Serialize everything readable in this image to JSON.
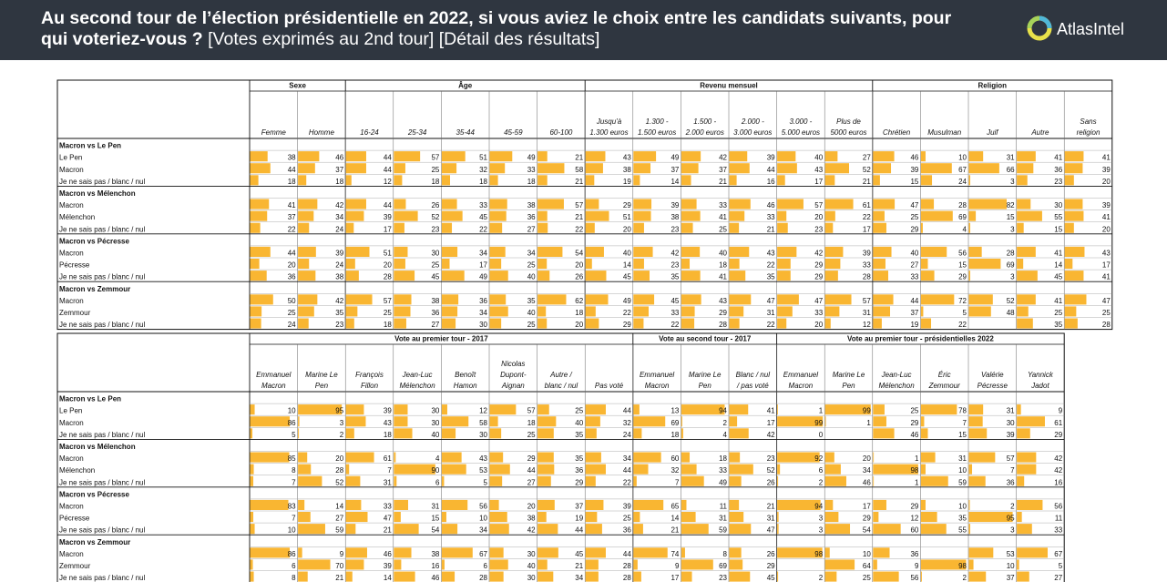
{
  "header": {
    "title_bold": "Au second tour de l’élection présidentielle en 2022, si vous aviez le choix entre les candidats suivants, pour qui voteriez-vous ?",
    "title_normal": " [Votes exprimés au 2nd tour] [Détail des résultats]",
    "logo_text": "AtlasIntel"
  },
  "colors": {
    "bar": "#f9b632",
    "header_bg": "#2f3640"
  },
  "table1": {
    "groups": [
      {
        "label": "Sexe",
        "span": 2
      },
      {
        "label": "Âge",
        "span": 5
      },
      {
        "label": "Revenu mensuel",
        "span": 6
      },
      {
        "label": "Religion",
        "span": 5
      }
    ],
    "columns": [
      [
        "Femme"
      ],
      [
        "Homme"
      ],
      [
        "16-24"
      ],
      [
        "25-34"
      ],
      [
        "35-44"
      ],
      [
        "45-59"
      ],
      [
        "60-100"
      ],
      [
        "Jusqu'à",
        "1.300 euros"
      ],
      [
        "1.300 -",
        "1.500 euros"
      ],
      [
        "1.500 -",
        "2.000 euros"
      ],
      [
        "2.000 -",
        "3.000 euros"
      ],
      [
        "3.000 -",
        "5.000 euros"
      ],
      [
        "Plus de",
        "5000 euros"
      ],
      [
        "Chrétien"
      ],
      [
        "Musulman"
      ],
      [
        "Juif"
      ],
      [
        "Autre"
      ],
      [
        "Sans",
        "religion"
      ]
    ],
    "sections": [
      {
        "title": "Macron vs Le Pen",
        "rows": [
          {
            "label": "Le Pen",
            "values": [
              38,
              46,
              44,
              57,
              51,
              49,
              21,
              43,
              49,
              42,
              39,
              40,
              27,
              46,
              10,
              31,
              41,
              41
            ]
          },
          {
            "label": "Macron",
            "values": [
              44,
              37,
              44,
              25,
              32,
              33,
              58,
              38,
              37,
              37,
              44,
              43,
              52,
              39,
              67,
              66,
              36,
              39
            ]
          },
          {
            "label": "Je ne sais pas / blanc / nul",
            "values": [
              18,
              18,
              12,
              18,
              18,
              18,
              21,
              19,
              14,
              21,
              16,
              17,
              21,
              15,
              24,
              3,
              23,
              20
            ]
          }
        ]
      },
      {
        "title": "Macron vs Mélenchon",
        "rows": [
          {
            "label": "Macron",
            "values": [
              41,
              42,
              44,
              26,
              33,
              38,
              57,
              29,
              39,
              33,
              46,
              57,
              61,
              47,
              28,
              82,
              30,
              39
            ]
          },
          {
            "label": "Mélenchon",
            "values": [
              37,
              34,
              39,
              52,
              45,
              36,
              21,
              51,
              38,
              41,
              33,
              20,
              22,
              25,
              69,
              15,
              55,
              41
            ]
          },
          {
            "label": "Je ne sais pas / blanc / nul",
            "values": [
              22,
              24,
              17,
              23,
              22,
              27,
              22,
              20,
              23,
              25,
              21,
              23,
              17,
              29,
              4,
              3,
              15,
              20
            ]
          }
        ]
      },
      {
        "title": "Macron vs Pécresse",
        "rows": [
          {
            "label": "Macron",
            "values": [
              44,
              39,
              51,
              30,
              34,
              34,
              54,
              40,
              42,
              40,
              43,
              42,
              39,
              40,
              56,
              28,
              41,
              43
            ]
          },
          {
            "label": "Pécresse",
            "values": [
              20,
              24,
              20,
              25,
              17,
              25,
              20,
              14,
              23,
              18,
              22,
              29,
              33,
              27,
              15,
              69,
              14,
              17
            ]
          },
          {
            "label": "Je ne sais pas / blanc / nul",
            "values": [
              36,
              38,
              28,
              45,
              49,
              40,
              26,
              45,
              35,
              41,
              35,
              29,
              28,
              33,
              29,
              3,
              45,
              41
            ]
          }
        ]
      },
      {
        "title": "Macron vs Zemmour",
        "rows": [
          {
            "label": "Macron",
            "values": [
              50,
              42,
              57,
              38,
              36,
              35,
              62,
              49,
              45,
              43,
              47,
              47,
              57,
              44,
              72,
              52,
              41,
              47
            ]
          },
          {
            "label": "Zemmour",
            "values": [
              25,
              35,
              25,
              36,
              34,
              40,
              18,
              22,
              33,
              29,
              31,
              33,
              31,
              37,
              5,
              48,
              25,
              25
            ]
          },
          {
            "label": "Je ne sais pas / blanc / nul",
            "values": [
              24,
              23,
              18,
              27,
              30,
              25,
              20,
              29,
              22,
              28,
              22,
              20,
              12,
              19,
              22,
              null,
              35,
              28
            ]
          }
        ]
      }
    ]
  },
  "table2": {
    "groups": [
      {
        "label": "Vote au premier tour - 2017",
        "span": 8
      },
      {
        "label": "Vote au second tour - 2017",
        "span": 3
      },
      {
        "label": "Vote au premier tour - présidentielles 2022",
        "span": 6
      }
    ],
    "columns": [
      [
        "Emmanuel",
        "Macron"
      ],
      [
        "Marine Le",
        "Pen"
      ],
      [
        "François",
        "Fillon"
      ],
      [
        "Jean-Luc",
        "Mélenchon"
      ],
      [
        "Benoît",
        "Hamon"
      ],
      [
        "Nicolas",
        "Dupont-",
        "Aignan"
      ],
      [
        "Autre /",
        "blanc / nul"
      ],
      [
        "Pas voté"
      ],
      [
        "Emmanuel",
        "Macron"
      ],
      [
        "Marine Le",
        "Pen"
      ],
      [
        "Blanc / nul",
        "/ pas voté"
      ],
      [
        "Emmanuel",
        "Macron"
      ],
      [
        "Marine Le",
        "Pen"
      ],
      [
        "Jean-Luc",
        "Mélenchon"
      ],
      [
        "Éric",
        "Zemmour"
      ],
      [
        "Valérie",
        "Pécresse"
      ],
      [
        "Yannick",
        "Jadot"
      ]
    ],
    "sections": [
      {
        "title": "Macron vs Le Pen",
        "rows": [
          {
            "label": "Le Pen",
            "values": [
              10,
              95,
              39,
              30,
              12,
              57,
              25,
              44,
              13,
              94,
              41,
              1,
              99,
              25,
              78,
              31,
              9
            ]
          },
          {
            "label": "Macron",
            "values": [
              86,
              3,
              43,
              30,
              58,
              18,
              40,
              32,
              69,
              2,
              17,
              99,
              1,
              29,
              7,
              30,
              61
            ]
          },
          {
            "label": "Je ne sais pas / blanc / nul",
            "values": [
              5,
              2,
              18,
              40,
              30,
              25,
              35,
              24,
              18,
              4,
              42,
              0,
              null,
              46,
              15,
              39,
              29
            ]
          }
        ]
      },
      {
        "title": "Macron vs Mélenchon",
        "rows": [
          {
            "label": "Macron",
            "values": [
              85,
              20,
              61,
              4,
              43,
              29,
              35,
              34,
              60,
              18,
              23,
              92,
              20,
              1,
              31,
              57,
              42
            ]
          },
          {
            "label": "Mélenchon",
            "values": [
              8,
              28,
              7,
              90,
              53,
              44,
              36,
              44,
              32,
              33,
              52,
              6,
              34,
              98,
              10,
              7,
              42
            ]
          },
          {
            "label": "Je ne sais pas / blanc / nul",
            "values": [
              7,
              52,
              31,
              6,
              5,
              27,
              29,
              22,
              7,
              49,
              26,
              2,
              46,
              1,
              59,
              36,
              16
            ]
          }
        ]
      },
      {
        "title": "Macron vs Pécresse",
        "rows": [
          {
            "label": "Macron",
            "values": [
              83,
              14,
              33,
              31,
              56,
              20,
              37,
              39,
              65,
              11,
              21,
              94,
              17,
              29,
              10,
              2,
              56
            ]
          },
          {
            "label": "Pécresse",
            "values": [
              7,
              27,
              47,
              15,
              10,
              38,
              19,
              25,
              14,
              31,
              31,
              3,
              29,
              12,
              35,
              95,
              11
            ]
          },
          {
            "label": "Je ne sais pas / blanc / nul",
            "values": [
              10,
              59,
              21,
              54,
              34,
              42,
              44,
              36,
              21,
              59,
              47,
              3,
              54,
              60,
              55,
              3,
              33
            ]
          }
        ]
      },
      {
        "title": "Macron vs Zemmour",
        "rows": [
          {
            "label": "Macron",
            "values": [
              86,
              9,
              46,
              38,
              67,
              30,
              45,
              44,
              74,
              8,
              26,
              98,
              10,
              36,
              null,
              53,
              67
            ]
          },
          {
            "label": "Zemmour",
            "values": [
              6,
              70,
              39,
              16,
              6,
              40,
              21,
              28,
              9,
              69,
              29,
              null,
              64,
              9,
              98,
              10,
              5
            ]
          },
          {
            "label": "Je ne sais pas / blanc / nul",
            "values": [
              8,
              21,
              14,
              46,
              28,
              30,
              34,
              28,
              17,
              23,
              45,
              2,
              25,
              56,
              2,
              37,
              27
            ]
          }
        ]
      }
    ]
  }
}
